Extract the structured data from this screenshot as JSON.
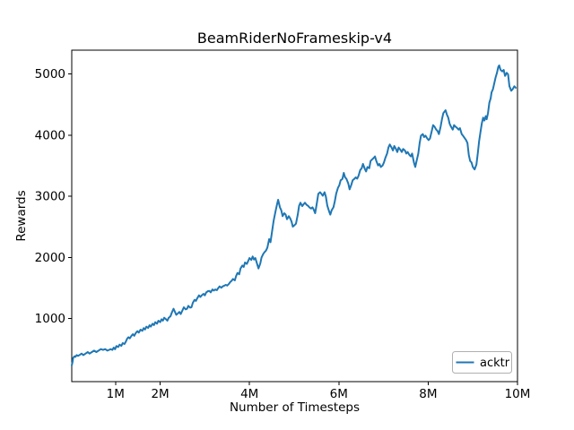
{
  "window": {
    "background": "#ffffff"
  },
  "chart_data": {
    "type": "line",
    "title": "BeamRiderNoFrameskip-v4",
    "xlabel": "Number of Timesteps",
    "ylabel": "Rewards",
    "grid": false,
    "legend_position": "lower right",
    "xlim": [
      0.02,
      10.0
    ],
    "ylim": [
      -30,
      5390
    ],
    "x_unit": "millions of timesteps",
    "xticks": [
      {
        "v": 1,
        "label": "1M"
      },
      {
        "v": 2,
        "label": "2M"
      },
      {
        "v": 4,
        "label": "4M"
      },
      {
        "v": 6,
        "label": "6M"
      },
      {
        "v": 8,
        "label": "8M"
      },
      {
        "v": 10,
        "label": "10M"
      }
    ],
    "yticks": [
      {
        "v": 1000,
        "label": "1000"
      },
      {
        "v": 2000,
        "label": "2000"
      },
      {
        "v": 3000,
        "label": "3000"
      },
      {
        "v": 4000,
        "label": "4000"
      },
      {
        "v": 5000,
        "label": "5000"
      }
    ],
    "legend": [
      {
        "label": "acktr",
        "color": "#1f77b4"
      }
    ],
    "series": [
      {
        "name": "acktr",
        "color": "#1f77b4",
        "x": [
          0.02,
          0.04,
          0.05,
          0.08,
          0.1,
          0.13,
          0.16,
          0.19,
          0.24,
          0.28,
          0.33,
          0.38,
          0.42,
          0.47,
          0.52,
          0.57,
          0.62,
          0.67,
          0.72,
          0.77,
          0.82,
          0.86,
          0.89,
          0.93,
          0.96,
          0.99,
          1.02,
          1.06,
          1.09,
          1.13,
          1.16,
          1.2,
          1.23,
          1.26,
          1.29,
          1.32,
          1.36,
          1.39,
          1.42,
          1.46,
          1.49,
          1.52,
          1.56,
          1.6,
          1.63,
          1.66,
          1.69,
          1.73,
          1.76,
          1.79,
          1.83,
          1.86,
          1.89,
          1.93,
          1.96,
          2.0,
          2.03,
          2.06,
          2.09,
          2.13,
          2.16,
          2.19,
          2.23,
          2.26,
          2.3,
          2.33,
          2.36,
          2.4,
          2.43,
          2.46,
          2.5,
          2.53,
          2.57,
          2.6,
          2.63,
          2.67,
          2.7,
          2.73,
          2.77,
          2.8,
          2.83,
          2.87,
          2.9,
          2.93,
          2.97,
          3.0,
          3.03,
          3.07,
          3.1,
          3.13,
          3.17,
          3.2,
          3.23,
          3.27,
          3.3,
          3.33,
          3.37,
          3.4,
          3.44,
          3.47,
          3.5,
          3.54,
          3.57,
          3.6,
          3.63,
          3.67,
          3.7,
          3.73,
          3.77,
          3.8,
          3.84,
          3.87,
          3.9,
          3.94,
          3.97,
          4.0,
          4.04,
          4.07,
          4.1,
          4.13,
          4.17,
          4.2,
          4.24,
          4.27,
          4.31,
          4.34,
          4.37,
          4.4,
          4.44,
          4.47,
          4.51,
          4.54,
          4.58,
          4.61,
          4.64,
          4.68,
          4.71,
          4.74,
          4.78,
          4.81,
          4.84,
          4.88,
          4.91,
          4.94,
          4.97,
          5.01,
          5.04,
          5.08,
          5.11,
          5.14,
          5.18,
          5.21,
          5.24,
          5.28,
          5.31,
          5.34,
          5.38,
          5.41,
          5.44,
          5.47,
          5.51,
          5.54,
          5.58,
          5.61,
          5.64,
          5.68,
          5.71,
          5.74,
          5.78,
          5.81,
          5.84,
          5.88,
          5.91,
          5.94,
          5.98,
          6.01,
          6.04,
          6.08,
          6.11,
          6.14,
          6.17,
          6.21,
          6.24,
          6.28,
          6.31,
          6.34,
          6.38,
          6.41,
          6.44,
          6.48,
          6.51,
          6.54,
          6.58,
          6.61,
          6.64,
          6.68,
          6.71,
          6.74,
          6.78,
          6.81,
          6.84,
          6.88,
          6.91,
          6.94,
          6.98,
          7.01,
          7.04,
          7.08,
          7.11,
          7.14,
          7.18,
          7.21,
          7.24,
          7.28,
          7.31,
          7.34,
          7.38,
          7.41,
          7.44,
          7.48,
          7.51,
          7.54,
          7.58,
          7.61,
          7.64,
          7.68,
          7.71,
          7.74,
          7.78,
          7.81,
          7.84,
          7.88,
          7.91,
          7.94,
          7.98,
          8.01,
          8.04,
          8.08,
          8.11,
          8.14,
          8.18,
          8.21,
          8.24,
          8.28,
          8.31,
          8.34,
          8.39,
          8.42,
          8.45,
          8.48,
          8.51,
          8.55,
          8.58,
          8.61,
          8.65,
          8.68,
          8.71,
          8.75,
          8.78,
          8.81,
          8.85,
          8.88,
          8.91,
          8.94,
          8.97,
          9.0,
          9.04,
          9.08,
          9.11,
          9.14,
          9.17,
          9.2,
          9.23,
          9.26,
          9.29,
          9.31,
          9.34,
          9.37,
          9.4,
          9.42,
          9.45,
          9.48,
          9.51,
          9.54,
          9.57,
          9.59,
          9.62,
          9.66,
          9.69,
          9.72,
          9.76,
          9.79,
          9.82,
          9.86,
          9.89,
          9.93,
          9.96
        ],
        "y": [
          234,
          300,
          355,
          385,
          375,
          404,
          390,
          404,
          428,
          404,
          428,
          453,
          428,
          453,
          477,
          453,
          477,
          502,
          488,
          502,
          477,
          490,
          502,
          488,
          527,
          500,
          551,
          535,
          575,
          555,
          600,
          585,
          624,
          673,
          697,
          678,
          722,
          746,
          720,
          771,
          795,
          772,
          820,
          800,
          844,
          822,
          868,
          848,
          892,
          870,
          917,
          895,
          941,
          918,
          966,
          942,
          990,
          968,
          1015,
          990,
          966,
          1015,
          1039,
          1100,
          1161,
          1112,
          1063,
          1088,
          1110,
          1075,
          1137,
          1186,
          1150,
          1161,
          1210,
          1180,
          1186,
          1259,
          1308,
          1290,
          1332,
          1381,
          1355,
          1380,
          1405,
          1381,
          1429,
          1450,
          1454,
          1429,
          1478,
          1460,
          1478,
          1465,
          1500,
          1527,
          1505,
          1527,
          1540,
          1552,
          1540,
          1570,
          1600,
          1620,
          1649,
          1625,
          1698,
          1747,
          1725,
          1820,
          1869,
          1845,
          1918,
          1895,
          1942,
          1991,
          1960,
          2016,
          1967,
          1990,
          1894,
          1820,
          1900,
          2000,
          2060,
          2090,
          2113,
          2162,
          2300,
          2250,
          2450,
          2601,
          2748,
          2850,
          2944,
          2820,
          2773,
          2675,
          2724,
          2700,
          2626,
          2675,
          2640,
          2590,
          2504,
          2530,
          2553,
          2700,
          2846,
          2895,
          2840,
          2870,
          2895,
          2860,
          2846,
          2821,
          2800,
          2821,
          2780,
          2724,
          2900,
          3041,
          3066,
          3040,
          3010,
          3066,
          2990,
          2850,
          2760,
          2700,
          2772,
          2821,
          2919,
          3041,
          3139,
          3180,
          3261,
          3285,
          3383,
          3310,
          3285,
          3212,
          3114,
          3188,
          3261,
          3280,
          3310,
          3290,
          3334,
          3432,
          3456,
          3529,
          3450,
          3407,
          3480,
          3460,
          3578,
          3600,
          3627,
          3652,
          3578,
          3505,
          3529,
          3480,
          3505,
          3554,
          3627,
          3700,
          3798,
          3847,
          3798,
          3749,
          3823,
          3774,
          3725,
          3798,
          3760,
          3725,
          3774,
          3749,
          3700,
          3725,
          3676,
          3652,
          3700,
          3554,
          3480,
          3578,
          3700,
          3871,
          3993,
          4018,
          3969,
          3993,
          3945,
          3920,
          3945,
          4067,
          4164,
          4140,
          4091,
          4067,
          4018,
          4140,
          4262,
          4360,
          4409,
          4335,
          4287,
          4189,
          4140,
          4091,
          4164,
          4140,
          4116,
          4091,
          4116,
          4018,
          3993,
          3960,
          3920,
          3871,
          3676,
          3578,
          3554,
          3480,
          3440,
          3520,
          3700,
          3900,
          4050,
          4190,
          4287,
          4238,
          4311,
          4260,
          4360,
          4530,
          4604,
          4702,
          4750,
          4848,
          4945,
          5019,
          5117,
          5141,
          5068,
          5043,
          5068,
          4970,
          5019,
          4995,
          4799,
          4726,
          4750,
          4799,
          4775
        ]
      }
    ]
  },
  "colors": {
    "line": "#1f77b4",
    "axes": "#000000",
    "background": "#ffffff",
    "legend_border": "#b0b0b0"
  }
}
